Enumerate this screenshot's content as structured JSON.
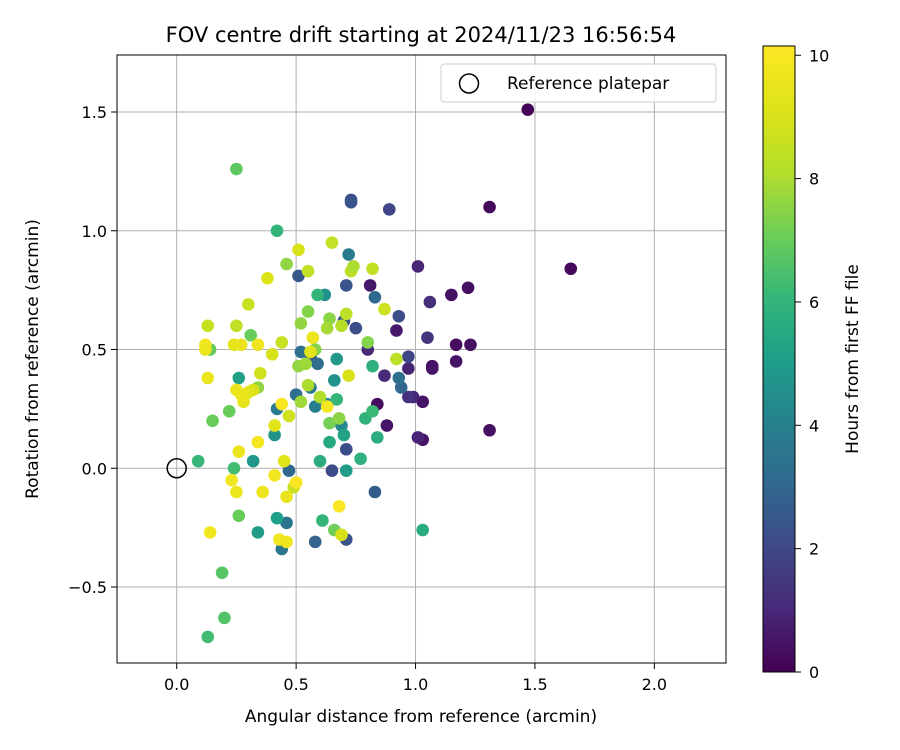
{
  "chart_data": {
    "type": "scatter",
    "title": "FOV centre drift starting at 2024/11/23 16:56:54",
    "xlabel": "Angular distance from reference (arcmin)",
    "ylabel": "Rotation from reference (arcmin)",
    "xlim": [
      -0.25,
      2.3
    ],
    "ylim": [
      -0.82,
      1.74
    ],
    "xticks": [
      0.0,
      0.5,
      1.0,
      1.5,
      2.0
    ],
    "xtick_labels": [
      "0.0",
      "0.5",
      "1.0",
      "1.5",
      "2.0"
    ],
    "yticks": [
      -0.5,
      0.0,
      0.5,
      1.0,
      1.5
    ],
    "ytick_labels": [
      "−0.5",
      "0.0",
      "0.5",
      "1.0",
      "1.5"
    ],
    "grid": true,
    "legend": {
      "placement": "top-right",
      "entries": [
        "Reference platepar"
      ]
    },
    "reference_point": {
      "x": 0.0,
      "y": 0.0,
      "label": "Reference platepar"
    },
    "colorbar": {
      "label": "Hours from first FF file",
      "range": [
        0,
        10.15
      ],
      "ticks": [
        0,
        2,
        4,
        6,
        8,
        10
      ],
      "tick_labels": [
        "0",
        "2",
        "4",
        "6",
        "8",
        "10"
      ],
      "colormap": "viridis"
    },
    "points": [
      {
        "x": 1.47,
        "y": 1.51,
        "h": 0.1
      },
      {
        "x": 1.31,
        "y": 1.1,
        "h": 0.2
      },
      {
        "x": 1.65,
        "y": 0.84,
        "h": 0.2
      },
      {
        "x": 1.22,
        "y": 0.76,
        "h": 0.4
      },
      {
        "x": 1.15,
        "y": 0.73,
        "h": 0.4
      },
      {
        "x": 1.17,
        "y": 0.52,
        "h": 0.3
      },
      {
        "x": 1.23,
        "y": 0.52,
        "h": 0.4
      },
      {
        "x": 1.17,
        "y": 0.45,
        "h": 0.5
      },
      {
        "x": 1.07,
        "y": 0.43,
        "h": 0.4
      },
      {
        "x": 1.07,
        "y": 0.42,
        "h": 0.5
      },
      {
        "x": 1.03,
        "y": 0.28,
        "h": 0.5
      },
      {
        "x": 1.31,
        "y": 0.16,
        "h": 0.4
      },
      {
        "x": 1.03,
        "y": 0.12,
        "h": 0.5
      },
      {
        "x": 1.01,
        "y": 0.13,
        "h": 0.9
      },
      {
        "x": 0.99,
        "y": 0.3,
        "h": 0.9
      },
      {
        "x": 0.97,
        "y": 0.3,
        "h": 1.3
      },
      {
        "x": 0.97,
        "y": 0.42,
        "h": 0.9
      },
      {
        "x": 0.92,
        "y": 0.58,
        "h": 0.6
      },
      {
        "x": 1.06,
        "y": 0.7,
        "h": 1.2
      },
      {
        "x": 1.05,
        "y": 0.55,
        "h": 1.4
      },
      {
        "x": 1.01,
        "y": 0.85,
        "h": 1.0
      },
      {
        "x": 0.97,
        "y": 0.47,
        "h": 1.9
      },
      {
        "x": 0.94,
        "y": 0.34,
        "h": 3.0
      },
      {
        "x": 0.93,
        "y": 0.38,
        "h": 3.4
      },
      {
        "x": 0.89,
        "y": 1.09,
        "h": 1.9
      },
      {
        "x": 0.93,
        "y": 0.64,
        "h": 2.2
      },
      {
        "x": 0.73,
        "y": 1.13,
        "h": 2.2
      },
      {
        "x": 0.73,
        "y": 1.12,
        "h": 2.4
      },
      {
        "x": 0.84,
        "y": 0.27,
        "h": 0.3
      },
      {
        "x": 0.88,
        "y": 0.18,
        "h": 0.5
      },
      {
        "x": 0.81,
        "y": 0.77,
        "h": 0.6
      },
      {
        "x": 0.8,
        "y": 0.5,
        "h": 1.1
      },
      {
        "x": 0.87,
        "y": 0.39,
        "h": 1.1
      },
      {
        "x": 0.83,
        "y": 0.72,
        "h": 3.1
      },
      {
        "x": 0.83,
        "y": -0.1,
        "h": 2.7
      },
      {
        "x": 0.75,
        "y": 0.59,
        "h": 2.1
      },
      {
        "x": 0.7,
        "y": 0.62,
        "h": 2.3
      },
      {
        "x": 0.71,
        "y": 0.77,
        "h": 2.4
      },
      {
        "x": 0.72,
        "y": 0.9,
        "h": 3.8
      },
      {
        "x": 0.71,
        "y": 0.08,
        "h": 2.2
      },
      {
        "x": 0.71,
        "y": -0.3,
        "h": 2.3
      },
      {
        "x": 0.65,
        "y": -0.01,
        "h": 2.1
      },
      {
        "x": 0.58,
        "y": -0.31,
        "h": 2.9
      },
      {
        "x": 0.56,
        "y": 0.47,
        "h": 2.4
      },
      {
        "x": 0.59,
        "y": 0.44,
        "h": 3.2
      },
      {
        "x": 0.62,
        "y": 0.73,
        "h": 4.6
      },
      {
        "x": 0.69,
        "y": 0.18,
        "h": 4.3
      },
      {
        "x": 0.7,
        "y": 0.14,
        "h": 5.2
      },
      {
        "x": 0.71,
        "y": -0.01,
        "h": 5.0
      },
      {
        "x": 0.67,
        "y": 0.46,
        "h": 4.9
      },
      {
        "x": 0.66,
        "y": 0.37,
        "h": 4.6
      },
      {
        "x": 0.63,
        "y": 0.27,
        "h": 4.3
      },
      {
        "x": 0.58,
        "y": 0.26,
        "h": 3.9
      },
      {
        "x": 0.56,
        "y": 0.34,
        "h": 3.7
      },
      {
        "x": 0.52,
        "y": 0.49,
        "h": 3.4
      },
      {
        "x": 0.5,
        "y": 0.31,
        "h": 3.3
      },
      {
        "x": 0.51,
        "y": 0.81,
        "h": 2.5
      },
      {
        "x": 0.47,
        "y": -0.01,
        "h": 3.0
      },
      {
        "x": 0.46,
        "y": -0.23,
        "h": 3.5
      },
      {
        "x": 0.44,
        "y": -0.34,
        "h": 3.6
      },
      {
        "x": 0.42,
        "y": 0.25,
        "h": 3.8
      },
      {
        "x": 0.41,
        "y": 0.14,
        "h": 4.7
      },
      {
        "x": 0.34,
        "y": -0.27,
        "h": 5.0
      },
      {
        "x": 0.32,
        "y": 0.03,
        "h": 4.8
      },
      {
        "x": 0.26,
        "y": 0.38,
        "h": 5.2
      },
      {
        "x": 0.42,
        "y": -0.21,
        "h": 5.1
      },
      {
        "x": 0.64,
        "y": 0.11,
        "h": 5.5
      },
      {
        "x": 0.6,
        "y": 0.03,
        "h": 5.7
      },
      {
        "x": 0.61,
        "y": -0.22,
        "h": 6.0
      },
      {
        "x": 0.59,
        "y": 0.73,
        "h": 6.0
      },
      {
        "x": 0.67,
        "y": 0.29,
        "h": 6.0
      },
      {
        "x": 0.77,
        "y": 0.04,
        "h": 5.8
      },
      {
        "x": 0.79,
        "y": 0.21,
        "h": 5.9
      },
      {
        "x": 0.84,
        "y": 0.13,
        "h": 5.7
      },
      {
        "x": 0.82,
        "y": 0.43,
        "h": 5.8
      },
      {
        "x": 0.82,
        "y": 0.24,
        "h": 6.2
      },
      {
        "x": 1.03,
        "y": -0.26,
        "h": 5.6
      },
      {
        "x": 0.42,
        "y": 1.0,
        "h": 6.0
      },
      {
        "x": 0.25,
        "y": 1.26,
        "h": 6.8
      },
      {
        "x": 0.24,
        "y": 0.0,
        "h": 6.3
      },
      {
        "x": 0.13,
        "y": -0.71,
        "h": 6.3
      },
      {
        "x": 0.2,
        "y": -0.63,
        "h": 6.6
      },
      {
        "x": 0.19,
        "y": -0.44,
        "h": 6.7
      },
      {
        "x": 0.26,
        "y": -0.2,
        "h": 7.0
      },
      {
        "x": 0.22,
        "y": 0.24,
        "h": 7.0
      },
      {
        "x": 0.15,
        "y": 0.2,
        "h": 7.0
      },
      {
        "x": 0.14,
        "y": 0.5,
        "h": 7.0
      },
      {
        "x": 0.09,
        "y": 0.03,
        "h": 6.1
      },
      {
        "x": 0.31,
        "y": 0.56,
        "h": 7.0
      },
      {
        "x": 0.34,
        "y": 0.34,
        "h": 7.6
      },
      {
        "x": 0.46,
        "y": 0.86,
        "h": 7.6
      },
      {
        "x": 0.52,
        "y": 0.61,
        "h": 7.6
      },
      {
        "x": 0.55,
        "y": 0.66,
        "h": 7.4
      },
      {
        "x": 0.58,
        "y": 0.5,
        "h": 7.4
      },
      {
        "x": 0.51,
        "y": 0.43,
        "h": 7.6
      },
      {
        "x": 0.54,
        "y": 0.44,
        "h": 7.8
      },
      {
        "x": 0.52,
        "y": 0.28,
        "h": 7.8
      },
      {
        "x": 0.55,
        "y": 0.35,
        "h": 8.0
      },
      {
        "x": 0.6,
        "y": 0.3,
        "h": 8.1
      },
      {
        "x": 0.64,
        "y": 0.19,
        "h": 7.2
      },
      {
        "x": 0.66,
        "y": -0.26,
        "h": 7.1
      },
      {
        "x": 0.68,
        "y": 0.21,
        "h": 7.5
      },
      {
        "x": 0.64,
        "y": 0.63,
        "h": 7.5
      },
      {
        "x": 0.63,
        "y": 0.59,
        "h": 7.9
      },
      {
        "x": 0.69,
        "y": 0.6,
        "h": 8.2
      },
      {
        "x": 0.71,
        "y": 0.65,
        "h": 8.3
      },
      {
        "x": 0.73,
        "y": 0.83,
        "h": 8.3
      },
      {
        "x": 0.74,
        "y": 0.85,
        "h": 8.0
      },
      {
        "x": 0.8,
        "y": 0.53,
        "h": 7.4
      },
      {
        "x": 0.82,
        "y": 0.84,
        "h": 8.5
      },
      {
        "x": 0.87,
        "y": 0.67,
        "h": 8.7
      },
      {
        "x": 0.92,
        "y": 0.46,
        "h": 8.3
      },
      {
        "x": 0.65,
        "y": 0.95,
        "h": 8.5
      },
      {
        "x": 0.55,
        "y": 0.83,
        "h": 8.4
      },
      {
        "x": 0.51,
        "y": 0.92,
        "h": 9.0
      },
      {
        "x": 0.38,
        "y": 0.8,
        "h": 9.1
      },
      {
        "x": 0.3,
        "y": 0.69,
        "h": 8.6
      },
      {
        "x": 0.25,
        "y": 0.6,
        "h": 8.4
      },
      {
        "x": 0.13,
        "y": 0.6,
        "h": 8.6
      },
      {
        "x": 0.44,
        "y": 0.53,
        "h": 8.6
      },
      {
        "x": 0.4,
        "y": 0.48,
        "h": 9.0
      },
      {
        "x": 0.35,
        "y": 0.4,
        "h": 8.8
      },
      {
        "x": 0.32,
        "y": 0.33,
        "h": 9.0
      },
      {
        "x": 0.3,
        "y": 0.32,
        "h": 9.3
      },
      {
        "x": 0.28,
        "y": 0.28,
        "h": 9.4
      },
      {
        "x": 0.27,
        "y": 0.31,
        "h": 9.6
      },
      {
        "x": 0.25,
        "y": 0.33,
        "h": 9.6
      },
      {
        "x": 0.24,
        "y": 0.52,
        "h": 9.4
      },
      {
        "x": 0.27,
        "y": 0.52,
        "h": 9.5
      },
      {
        "x": 0.34,
        "y": 0.52,
        "h": 9.7
      },
      {
        "x": 0.12,
        "y": 0.52,
        "h": 9.8
      },
      {
        "x": 0.12,
        "y": 0.5,
        "h": 9.6
      },
      {
        "x": 0.13,
        "y": 0.38,
        "h": 9.5
      },
      {
        "x": 0.34,
        "y": 0.11,
        "h": 9.9
      },
      {
        "x": 0.26,
        "y": 0.07,
        "h": 9.6
      },
      {
        "x": 0.23,
        "y": -0.05,
        "h": 9.8
      },
      {
        "x": 0.25,
        "y": -0.1,
        "h": 9.6
      },
      {
        "x": 0.36,
        "y": -0.1,
        "h": 9.6
      },
      {
        "x": 0.41,
        "y": -0.03,
        "h": 9.8
      },
      {
        "x": 0.45,
        "y": 0.03,
        "h": 9.3
      },
      {
        "x": 0.47,
        "y": 0.22,
        "h": 8.8
      },
      {
        "x": 0.41,
        "y": 0.18,
        "h": 9.3
      },
      {
        "x": 0.44,
        "y": 0.27,
        "h": 10.0
      },
      {
        "x": 0.49,
        "y": -0.08,
        "h": 8.6
      },
      {
        "x": 0.5,
        "y": -0.06,
        "h": 10.0
      },
      {
        "x": 0.46,
        "y": -0.12,
        "h": 9.5
      },
      {
        "x": 0.43,
        "y": -0.3,
        "h": 9.8
      },
      {
        "x": 0.46,
        "y": -0.31,
        "h": 9.7
      },
      {
        "x": 0.14,
        "y": -0.27,
        "h": 9.8
      },
      {
        "x": 0.68,
        "y": -0.16,
        "h": 10.1
      },
      {
        "x": 0.69,
        "y": -0.28,
        "h": 9.0
      },
      {
        "x": 0.72,
        "y": 0.39,
        "h": 9.0
      },
      {
        "x": 0.57,
        "y": 0.55,
        "h": 9.6
      },
      {
        "x": 0.63,
        "y": 0.26,
        "h": 9.9
      },
      {
        "x": 0.56,
        "y": 0.49,
        "h": 9.4
      }
    ]
  }
}
